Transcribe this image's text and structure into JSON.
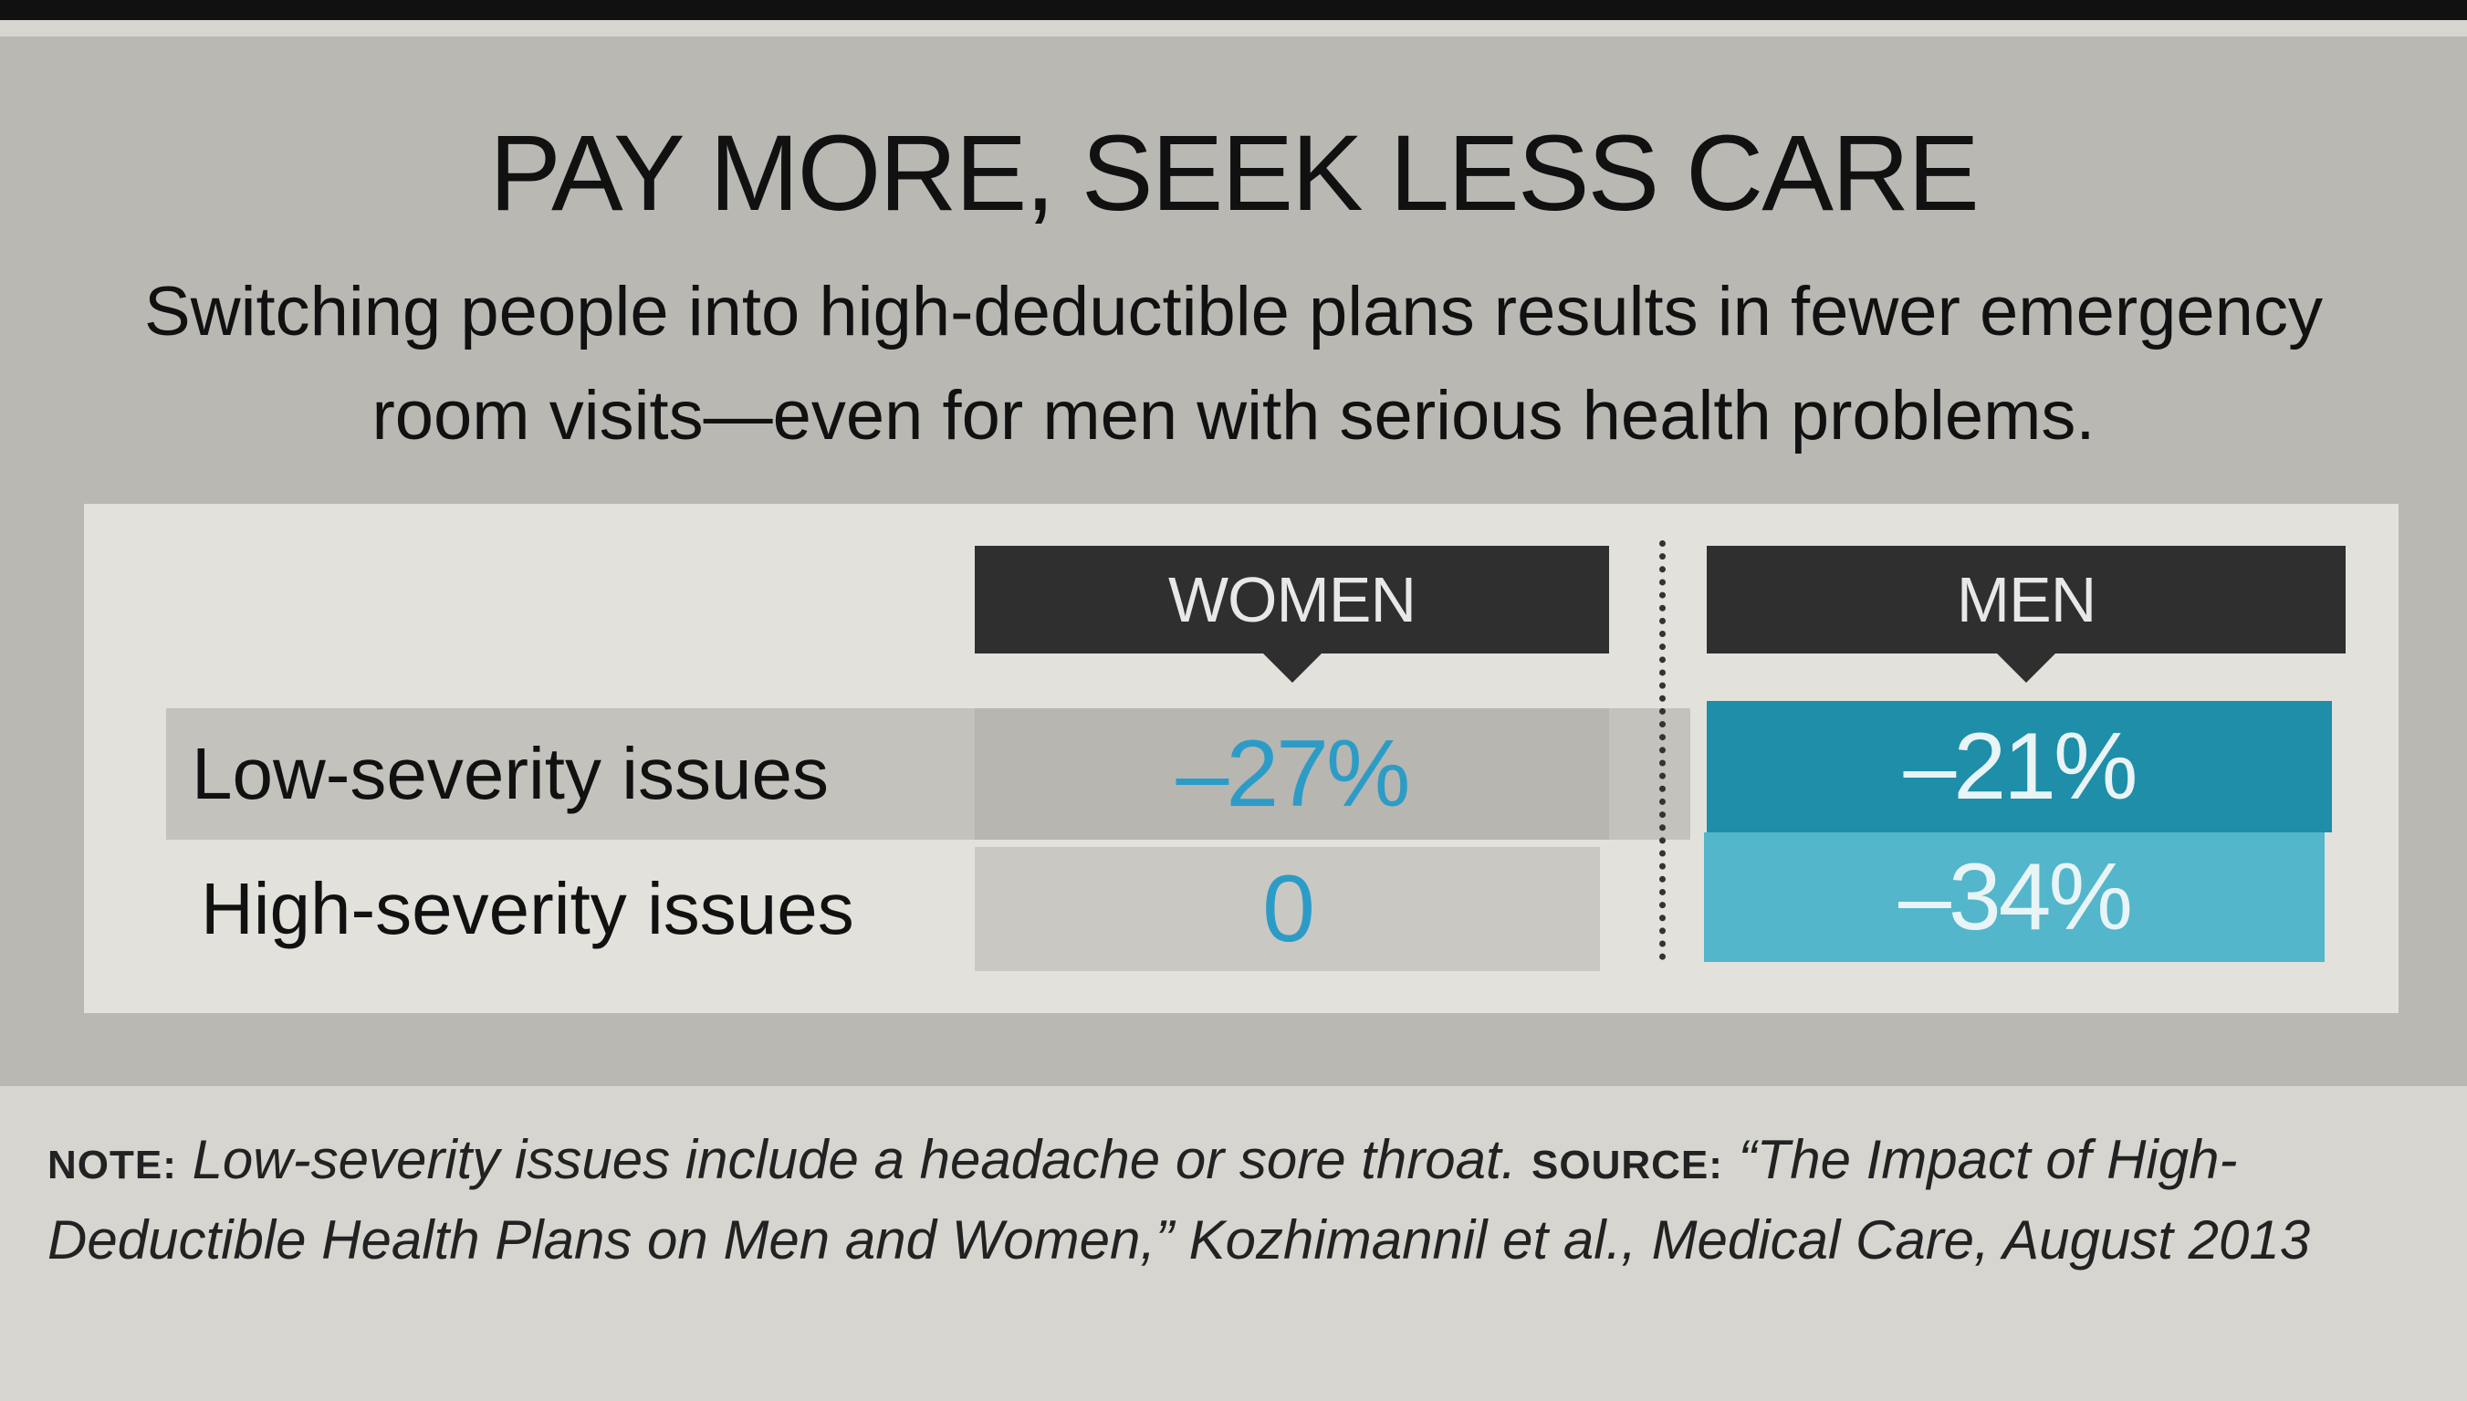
{
  "chart_data": {
    "type": "table",
    "title": "PAY MORE, SEEK LESS CARE",
    "subtitle": "Switching people into high-deductible plans results in fewer emergency room visits—even for men with serious health problems.",
    "columns": [
      "WOMEN",
      "MEN"
    ],
    "rows": [
      {
        "label": "Low-severity issues",
        "values": [
          "–27%",
          "–21%"
        ]
      },
      {
        "label": "High-severity issues",
        "values": [
          "0",
          "–34%"
        ]
      }
    ]
  },
  "note": {
    "note_label": "NOTE:",
    "note_text": "Low-severity issues include a headache or sore throat.",
    "source_label": "SOURCE:",
    "source_text": "“The Impact of High-Deductible Health Plans on Men and Women,” Kozhimannil et al., Medical Care, August 2013"
  },
  "colors": {
    "women_text": "#2c9cc7",
    "men_low_bg": "#1f8ea8",
    "men_high_bg": "#53b6cb",
    "men_text": "#e9f4f6",
    "header_bg": "#2f2f2f"
  }
}
